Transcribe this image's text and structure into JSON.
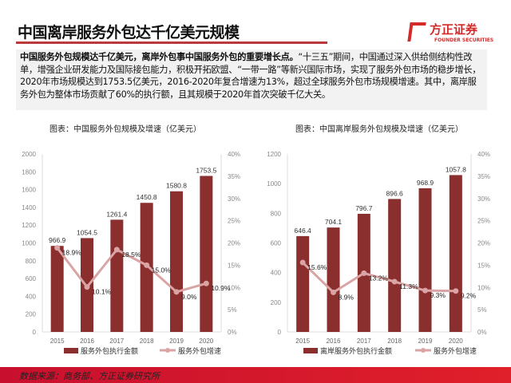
{
  "header": {
    "title": "中国离岸服务外包达千亿美元规模",
    "logo_cn": "方正证券",
    "logo_en": "FOUNDER SECURITIES"
  },
  "summary": {
    "bold": "中国服务外包规模达千亿美元，离岸外包事中国服务外包的重要增长点。",
    "text": "“十三五”期间，中国通过深入供给侧结构性改单，增强企业研发能力及国际接包能力，积极开拓欧盟、“一带一路”等新兴国际市场，实现了服务外包市场的稳步增长，2020年市场规模达到1753.5亿美元，2016-2020年复合增速为13%，超过全球服务外包市场规模增速。其中，离岸服务外包为整体市场贡献了60%的执行额，且其规模于2020年首次突破千亿大关。"
  },
  "colors": {
    "bar": "#8b2e2e",
    "line": "#dba4a4",
    "accent": "#c8102e"
  },
  "chart_data": [
    {
      "type": "bar+line",
      "title": "图表：中国服务外包规模及增速（亿美元）",
      "categories": [
        "2015",
        "2016",
        "2017",
        "2018",
        "2019",
        "2020"
      ],
      "series": [
        {
          "name": "服务外包执行金额",
          "type": "bar",
          "axis": "left",
          "values": [
            966.9,
            1054.5,
            1261.4,
            1450.8,
            1580.8,
            1753.5
          ],
          "labels": [
            "966.9",
            "1054.5",
            "1261.4",
            "1450.8",
            "1580.8",
            "1753.5"
          ]
        },
        {
          "name": "服务外包增速",
          "type": "line",
          "axis": "right",
          "values": [
            18.9,
            10.1,
            18.5,
            15.0,
            9.0,
            10.9
          ],
          "labels": [
            "18.9%",
            "10.1%",
            "18.5%",
            "15.0%",
            "9.0%",
            "10.9%"
          ]
        }
      ],
      "ylim": [
        0,
        2000
      ],
      "yticks": [
        "0",
        "200",
        "400",
        "600",
        "800",
        "1000",
        "1200",
        "1400",
        "1600",
        "1800",
        "2000"
      ],
      "y2lim": [
        0,
        40
      ],
      "y2ticks": [
        "0%",
        "5%",
        "10%",
        "15%",
        "20%",
        "25%",
        "30%",
        "35%",
        "40%"
      ],
      "legend": "bottom",
      "grid": false
    },
    {
      "type": "bar+line",
      "title": "图表：中国离岸服务外包规模及增速（亿美元）",
      "categories": [
        "2015",
        "2016",
        "2017",
        "2018",
        "2019",
        "2020"
      ],
      "series": [
        {
          "name": "离岸服务外包执行金额",
          "type": "bar",
          "axis": "left",
          "values": [
            646.4,
            704.1,
            796.7,
            896.6,
            968.9,
            1057.8
          ],
          "labels": [
            "646.4",
            "704.1",
            "796.7",
            "896.6",
            "968.9",
            "1057.8"
          ]
        },
        {
          "name": "服务外包增速",
          "type": "line",
          "axis": "right",
          "values": [
            15.6,
            8.9,
            13.2,
            11.3,
            9.3,
            9.2
          ],
          "labels": [
            "15.6%",
            "8.9%",
            "13.2%",
            "11.3%",
            "9.3%",
            "9.2%"
          ]
        }
      ],
      "ylim": [
        0,
        1200
      ],
      "yticks": [
        "0",
        "200",
        "400",
        "600",
        "800",
        "1000",
        "1200"
      ],
      "y2lim": [
        0,
        40
      ],
      "y2ticks": [
        "0%",
        "5%",
        "10%",
        "15%",
        "20%",
        "25%",
        "30%",
        "35%",
        "40%"
      ],
      "legend": "bottom",
      "grid": false
    }
  ],
  "footer": {
    "source": "数据来源：商务部、方正证券研究所"
  }
}
